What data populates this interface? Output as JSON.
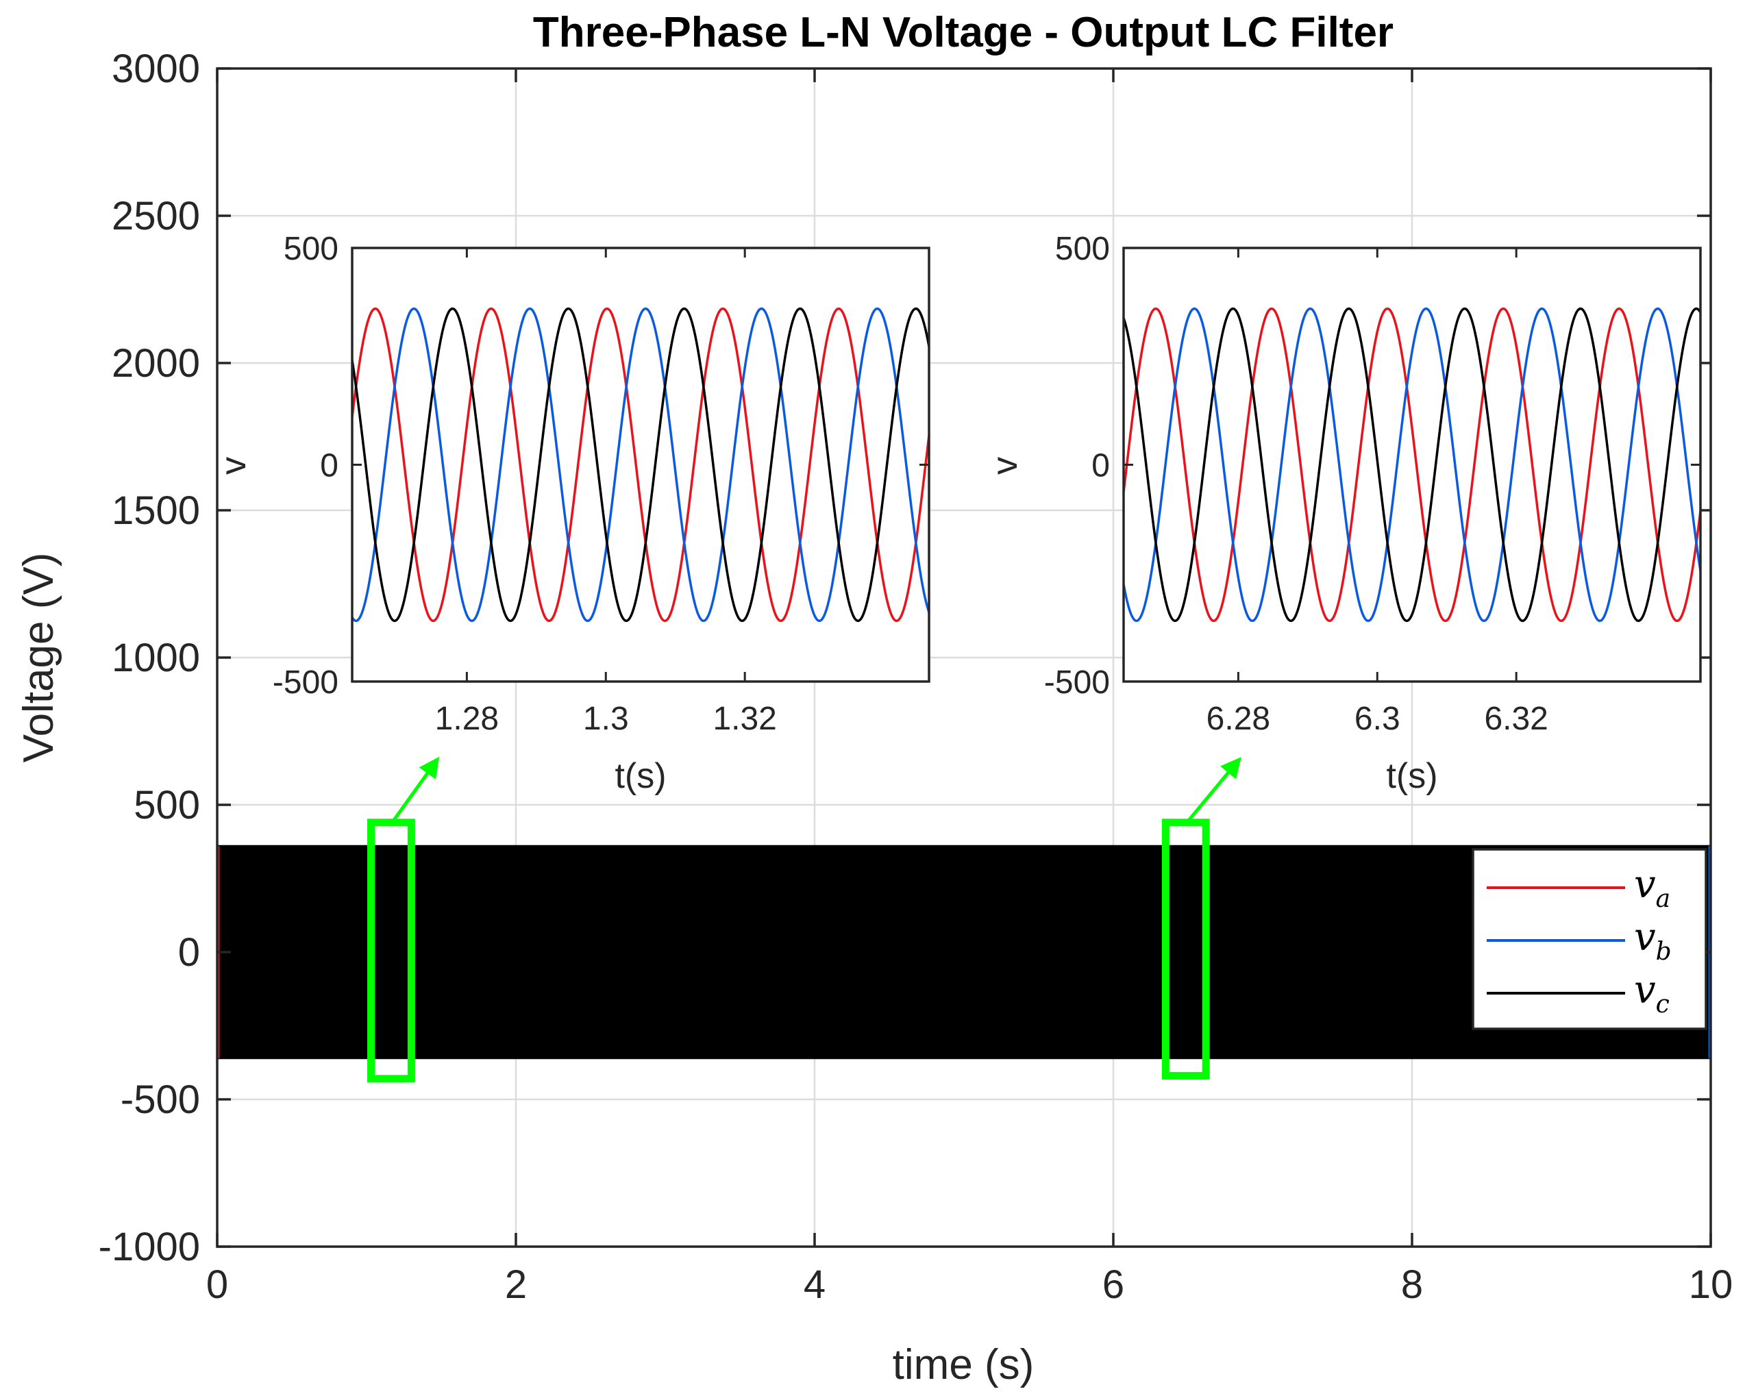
{
  "chart_data": [
    {
      "id": "main",
      "type": "line",
      "title": "Three-Phase L-N Voltage - Output LC Filter",
      "xlabel": "time (s)",
      "ylabel": "Voltage (V)",
      "xlim": [
        0,
        10
      ],
      "ylim": [
        -1000,
        3000
      ],
      "xticks": [
        0,
        2,
        4,
        6,
        8,
        10
      ],
      "yticks": [
        -1000,
        -500,
        0,
        500,
        1000,
        1500,
        2000,
        2500,
        3000
      ],
      "xtick_labels": [
        "0",
        "2",
        "4",
        "6",
        "8",
        "10"
      ],
      "ytick_labels": [
        "-1000",
        "-500",
        "0",
        "500",
        "1000",
        "1500",
        "2000",
        "2500",
        "3000"
      ],
      "grid": true,
      "amplitude": 360,
      "frequency_hz": 60,
      "series": [
        {
          "name": "v_a",
          "sub": "a",
          "phase_deg": 0,
          "color": "#e8131b"
        },
        {
          "name": "v_b",
          "sub": "b",
          "phase_deg": -120,
          "color": "#0b5be0"
        },
        {
          "name": "v_c",
          "sub": "c",
          "phase_deg": 120,
          "color": "#000000"
        }
      ],
      "legend": {
        "location": "right",
        "entries": [
          "v",
          "v",
          "v"
        ]
      },
      "zoom_boxes": [
        {
          "x_range": [
            1.03,
            1.3
          ],
          "y_range": [
            -430,
            440
          ],
          "color": "#00ff00"
        },
        {
          "x_range": [
            6.35,
            6.62
          ],
          "y_range": [
            -420,
            440
          ],
          "color": "#00ff00"
        }
      ]
    },
    {
      "id": "inset1",
      "type": "line",
      "xlabel": "t(s)",
      "ylabel": "v",
      "xlim": [
        1.2635,
        1.3465
      ],
      "ylim": [
        -500,
        500
      ],
      "xticks": [
        1.28,
        1.3,
        1.32
      ],
      "xtick_labels": [
        "1.28",
        "1.3",
        "1.32"
      ],
      "yticks": [
        -500,
        0,
        500
      ],
      "ytick_labels": [
        "-500",
        "0",
        "500"
      ],
      "amplitude": 360,
      "frequency_hz": 60,
      "phase_offset_deg": 18
    },
    {
      "id": "inset2",
      "type": "line",
      "xlabel": "t(s)",
      "ylabel": "v",
      "xlim": [
        6.2635,
        6.3465
      ],
      "ylim": [
        -500,
        500
      ],
      "xticks": [
        6.28,
        6.3,
        6.32
      ],
      "xtick_labels": [
        "6.28",
        "6.3",
        "6.32"
      ],
      "yticks": [
        -500,
        0,
        500
      ],
      "ytick_labels": [
        "-500",
        "0",
        "500"
      ],
      "amplitude": 360,
      "frequency_hz": 60,
      "phase_offset_deg": -10
    }
  ]
}
